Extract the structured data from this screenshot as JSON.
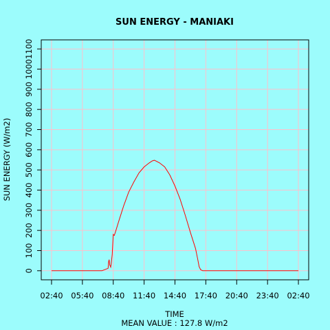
{
  "chart_data": {
    "type": "line",
    "title": "SUN ENERGY - MANIAKI",
    "xlabel": "TIME",
    "ylabel": "SUN ENERGY (W/m2)",
    "footnote": "MEAN VALUE : 127.8 W/m2",
    "x_tick_labels": [
      "02:40",
      "05:40",
      "08:40",
      "11:40",
      "14:40",
      "17:40",
      "20:40",
      "23:40",
      "02:40"
    ],
    "x_tick_hours": [
      0,
      3,
      6,
      9,
      12,
      15,
      18,
      21,
      24
    ],
    "y_ticks": [
      0,
      100,
      200,
      300,
      400,
      500,
      600,
      700,
      800,
      900,
      1000,
      1100
    ],
    "xlim": [
      -1,
      25
    ],
    "ylim": [
      -45,
      1145
    ],
    "grid": true,
    "colors": {
      "background": "#9cfcfc",
      "grid": "#ffc0cb",
      "line": "#ff0000"
    },
    "series": [
      {
        "points": [
          [
            0,
            0
          ],
          [
            4.9,
            0
          ],
          [
            5.0,
            2
          ],
          [
            5.3,
            8
          ],
          [
            5.5,
            12
          ],
          [
            5.55,
            45
          ],
          [
            5.6,
            55
          ],
          [
            5.65,
            30
          ],
          [
            5.75,
            18
          ],
          [
            5.8,
            35
          ],
          [
            5.9,
            80
          ],
          [
            5.95,
            130
          ],
          [
            6.0,
            180
          ],
          [
            6.1,
            175
          ],
          [
            6.2,
            190
          ],
          [
            6.5,
            240
          ],
          [
            7.0,
            320
          ],
          [
            7.5,
            390
          ],
          [
            8.0,
            440
          ],
          [
            8.5,
            485
          ],
          [
            9.0,
            515
          ],
          [
            9.5,
            535
          ],
          [
            9.8,
            545
          ],
          [
            10.0,
            548
          ],
          [
            10.5,
            535
          ],
          [
            11.0,
            515
          ],
          [
            11.5,
            475
          ],
          [
            12.0,
            420
          ],
          [
            12.5,
            355
          ],
          [
            13.0,
            275
          ],
          [
            13.5,
            190
          ],
          [
            14.0,
            110
          ],
          [
            14.2,
            60
          ],
          [
            14.35,
            20
          ],
          [
            14.5,
            5
          ],
          [
            14.7,
            0
          ],
          [
            24,
            0
          ]
        ]
      }
    ]
  }
}
